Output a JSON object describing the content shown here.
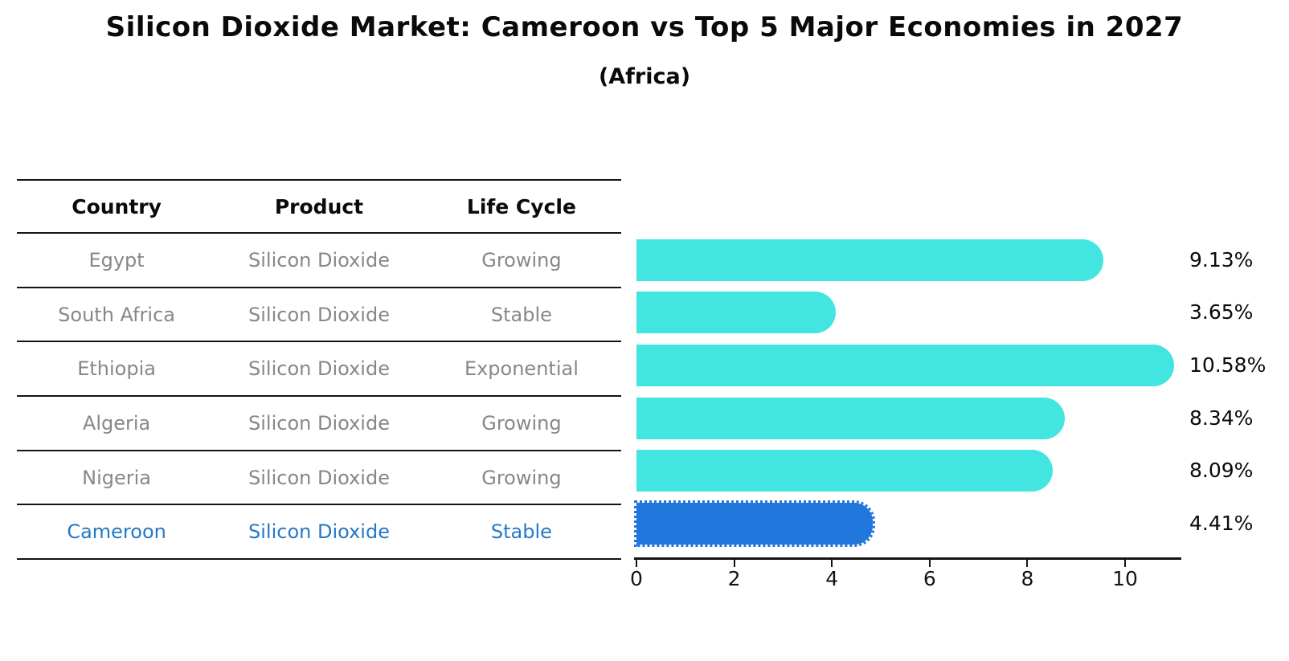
{
  "title": "Silicon Dioxide Market: Cameroon vs Top 5 Major Economies in 2027",
  "subtitle": "(Africa)",
  "table": {
    "headers": [
      "Country",
      "Product",
      "Life Cycle"
    ],
    "rows": [
      {
        "country": "Egypt",
        "product": "Silicon Dioxide",
        "life_cycle": "Growing",
        "highlight": false
      },
      {
        "country": "South Africa",
        "product": "Silicon Dioxide",
        "life_cycle": "Stable",
        "highlight": false
      },
      {
        "country": "Ethiopia",
        "product": "Silicon Dioxide",
        "life_cycle": "Exponential",
        "highlight": false
      },
      {
        "country": "Algeria",
        "product": "Silicon Dioxide",
        "life_cycle": "Growing",
        "highlight": false
      },
      {
        "country": "Nigeria",
        "product": "Silicon Dioxide",
        "life_cycle": "Growing",
        "highlight": false
      },
      {
        "country": "Cameroon",
        "product": "Silicon Dioxide",
        "life_cycle": "Stable",
        "highlight": true
      }
    ]
  },
  "chart_data": {
    "type": "bar",
    "orientation": "horizontal",
    "title": "Silicon Dioxide Market: Cameroon vs Top 5 Major Economies in 2027",
    "subtitle": "(Africa)",
    "categories": [
      "Egypt",
      "South Africa",
      "Ethiopia",
      "Algeria",
      "Nigeria",
      "Cameroon"
    ],
    "values": [
      9.13,
      3.65,
      10.58,
      8.34,
      8.09,
      4.41
    ],
    "value_labels": [
      "9.13%",
      "3.65%",
      "10.58%",
      "8.34%",
      "8.09%",
      "4.41%"
    ],
    "xlabel": "",
    "ylabel": "",
    "xlim": [
      0,
      11.15
    ],
    "x_ticks": [
      0,
      2,
      4,
      6,
      8,
      10
    ],
    "grid": false,
    "legend": false,
    "highlight_category": "Cameroon",
    "colors": {
      "bar": "#42e5e0",
      "highlight_bar": "#2277dd",
      "highlight_text": "#2578c8",
      "text": "#0a0a0a",
      "muted_text": "#878787",
      "axis": "#141414"
    }
  }
}
